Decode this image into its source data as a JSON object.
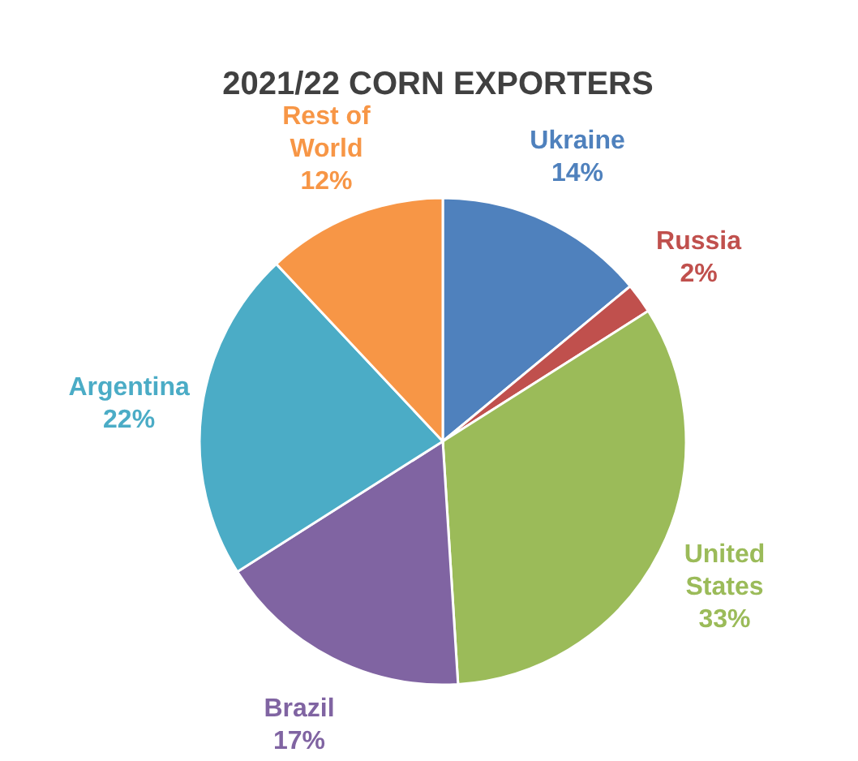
{
  "chart_data": {
    "type": "pie",
    "title": "2021/22 CORN EXPORTERS",
    "categories": [
      "Ukraine",
      "Russia",
      "United States",
      "Brazil",
      "Argentina",
      "Rest of World"
    ],
    "values": [
      14,
      2,
      33,
      17,
      22,
      12
    ],
    "colors": [
      "#4f81bd",
      "#c0504d",
      "#9bbb59",
      "#8064a2",
      "#4bacc6",
      "#f79646"
    ],
    "value_labels": [
      "14%",
      "2%",
      "33%",
      "17%",
      "22%",
      "12%"
    ]
  }
}
